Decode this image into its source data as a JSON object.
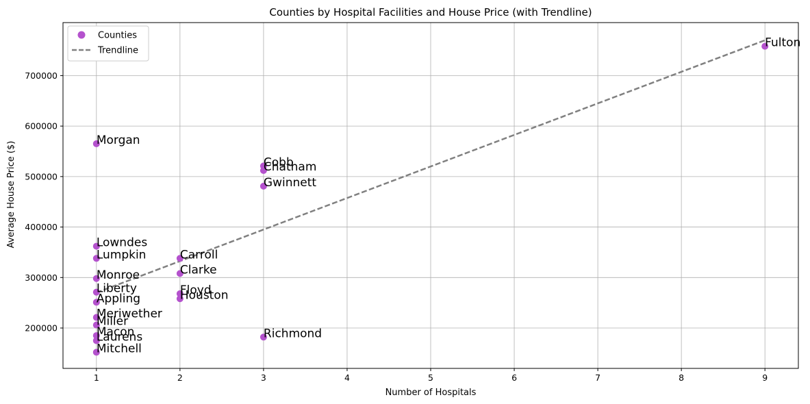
{
  "chart_data": {
    "type": "scatter",
    "title": "Counties by Hospital Facilities and House Price (with Trendline)",
    "xlabel": "Number of Hospitals",
    "ylabel": "Average House Price ($)",
    "xlim": [
      0.6,
      9.4
    ],
    "ylim": [
      120000,
      805000
    ],
    "xticks": [
      1,
      2,
      3,
      4,
      5,
      6,
      7,
      8,
      9
    ],
    "yticks": [
      200000,
      300000,
      400000,
      500000,
      600000,
      700000
    ],
    "grid": true,
    "legend_position": "upper-left",
    "series": [
      {
        "name": "Counties",
        "kind": "scatter",
        "color": "#b452cd",
        "points": [
          {
            "label": "Morgan",
            "x": 1,
            "y": 565000
          },
          {
            "label": "Lowndes",
            "x": 1,
            "y": 362000
          },
          {
            "label": "Lumpkin",
            "x": 1,
            "y": 338000
          },
          {
            "label": "Monroe",
            "x": 1,
            "y": 298000
          },
          {
            "label": "Liberty",
            "x": 1,
            "y": 271000
          },
          {
            "label": "Appling",
            "x": 1,
            "y": 251000
          },
          {
            "label": "Meriwether",
            "x": 1,
            "y": 221000
          },
          {
            "label": "Miller",
            "x": 1,
            "y": 206000
          },
          {
            "label": "Macon",
            "x": 1,
            "y": 185000
          },
          {
            "label": "Laurens",
            "x": 1,
            "y": 175000
          },
          {
            "label": "Mitchell",
            "x": 1,
            "y": 152000
          },
          {
            "label": "Carroll",
            "x": 2,
            "y": 338000
          },
          {
            "label": "Clarke",
            "x": 2,
            "y": 308000
          },
          {
            "label": "Floyd",
            "x": 2,
            "y": 268000
          },
          {
            "label": "Houston",
            "x": 2,
            "y": 258000
          },
          {
            "label": "Cobb",
            "x": 3,
            "y": 521000
          },
          {
            "label": "Chatham",
            "x": 3,
            "y": 512000
          },
          {
            "label": "Gwinnett",
            "x": 3,
            "y": 481000
          },
          {
            "label": "Richmond",
            "x": 3,
            "y": 182000
          },
          {
            "label": "Fulton",
            "x": 9,
            "y": 758000
          }
        ]
      },
      {
        "name": "Trendline",
        "kind": "line",
        "style": "dashed",
        "color": "#808080",
        "x": [
          1,
          9
        ],
        "y": [
          270000,
          770000
        ]
      }
    ]
  }
}
